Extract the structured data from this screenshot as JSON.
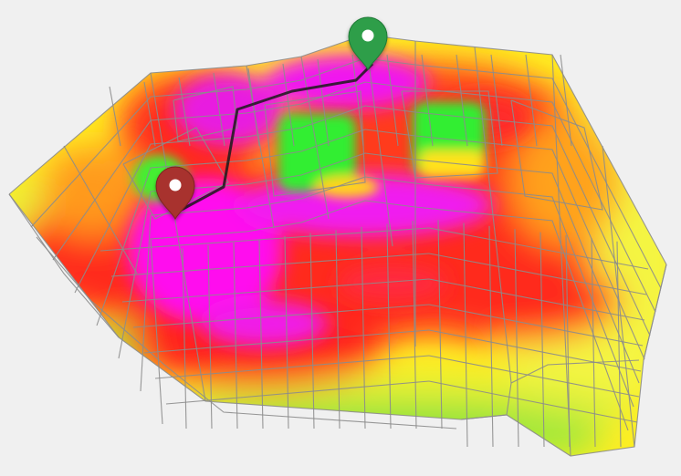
{
  "scene": {
    "background_color": "#f0f0f0",
    "wireframe_color": "#8c8c8c",
    "route_color": "#1a1a1a",
    "heat_scale": [
      "#ff00ff",
      "#ff1a1a",
      "#ffd400",
      "#ffff33",
      "#33ee33"
    ]
  },
  "markers": [
    {
      "name": "start-marker",
      "icon": "map-pin-icon",
      "color": "#2e9e4a"
    },
    {
      "name": "end-marker",
      "icon": "map-pin-icon",
      "color": "#a8322d"
    }
  ]
}
